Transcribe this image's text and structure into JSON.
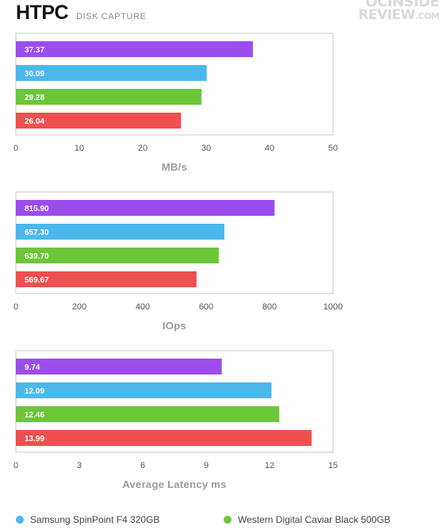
{
  "header": {
    "title": "HTPC",
    "subtitle": "DISK CAPTURE",
    "watermark_line1": "OCINSIDE",
    "watermark_line2": "REVIEW",
    "watermark_suffix": ".COM"
  },
  "colors": {
    "purple": "#9b4ded",
    "blue": "#4bb8ec",
    "green": "#6cc63a",
    "red": "#ef4f4f"
  },
  "legend": [
    {
      "label": "Samsung SpinPoint F4 320GB",
      "color": "#4bb8ec"
    },
    {
      "label": "Western Digital Caviar Black 500GB",
      "color": "#6cc63a"
    }
  ],
  "chart_data": [
    {
      "type": "bar",
      "orientation": "horizontal",
      "values": [
        37.37,
        30.09,
        29.28,
        26.04
      ],
      "labels": [
        "37.37",
        "30.09",
        "29.28",
        "26.04"
      ],
      "colors": [
        "#9b4ded",
        "#4bb8ec",
        "#6cc63a",
        "#ef4f4f"
      ],
      "xlim": [
        0,
        50
      ],
      "ticks": [
        0,
        10,
        20,
        30,
        40,
        50
      ],
      "tick_labels": [
        "0",
        "10",
        "20",
        "30",
        "40",
        "50"
      ],
      "xlabel": "MB/s"
    },
    {
      "type": "bar",
      "orientation": "horizontal",
      "values": [
        815.9,
        657.3,
        639.7,
        569.67
      ],
      "labels": [
        "815.90",
        "657.30",
        "639.70",
        "569.67"
      ],
      "colors": [
        "#9b4ded",
        "#4bb8ec",
        "#6cc63a",
        "#ef4f4f"
      ],
      "xlim": [
        0,
        1000
      ],
      "ticks": [
        0,
        200,
        400,
        600,
        800,
        1000
      ],
      "tick_labels": [
        "0",
        "200",
        "400",
        "600",
        "800",
        "1000"
      ],
      "xlabel": "IOps"
    },
    {
      "type": "bar",
      "orientation": "horizontal",
      "values": [
        9.74,
        12.09,
        12.46,
        13.99
      ],
      "labels": [
        "9.74",
        "12.09",
        "12.46",
        "13.99"
      ],
      "colors": [
        "#9b4ded",
        "#4bb8ec",
        "#6cc63a",
        "#ef4f4f"
      ],
      "xlim": [
        0,
        15
      ],
      "ticks": [
        0,
        3,
        6,
        9,
        12,
        15
      ],
      "tick_labels": [
        "0",
        "3",
        "6",
        "9",
        "12",
        "15"
      ],
      "xlabel": "Average Latency ms"
    }
  ]
}
